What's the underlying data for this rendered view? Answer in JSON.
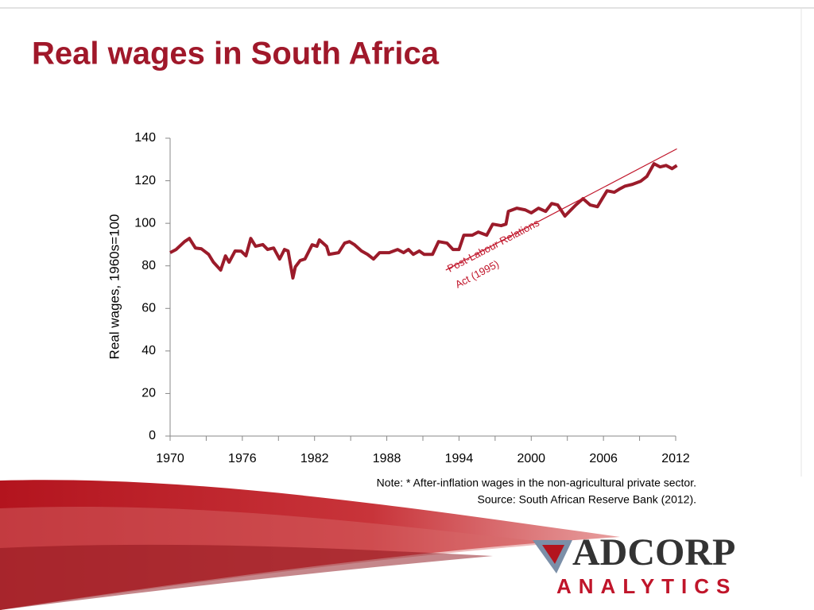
{
  "title": "Real wages in South Africa",
  "chart_data": {
    "type": "line",
    "ylabel": "Real wages, 1960s=100",
    "x": [
      1970,
      1970.5,
      1971.2,
      1971.6,
      1972.1,
      1972.6,
      1973.2,
      1973.6,
      1974.2,
      1974.6,
      1974.9,
      1975.4,
      1975.9,
      1976.3,
      1976.7,
      1977.1,
      1977.7,
      1978.1,
      1978.6,
      1979.1,
      1979.5,
      1979.8,
      1980.2,
      1980.4,
      1980.8,
      1981.2,
      1981.8,
      1982.2,
      1982.4,
      1983,
      1983.2,
      1984,
      1984.5,
      1984.9,
      1985.3,
      1985.9,
      1986.4,
      1986.9,
      1987.4,
      1988.2,
      1988.9,
      1989.4,
      1989.8,
      1990.2,
      1990.7,
      1991.1,
      1991.8,
      1992.3,
      1993,
      1993.5,
      1994,
      1994.4,
      1995.1,
      1995.6,
      1996.3,
      1996.8,
      1997.5,
      1997.9,
      1998.1,
      1998.8,
      1999.5,
      2000,
      2000.6,
      2001.2,
      2001.7,
      2002.2,
      2002.8,
      2003.3,
      2003.7,
      2004.3,
      2004.9,
      2005.5,
      2005.9,
      2006.3,
      2006.9,
      2007.3,
      2007.8,
      2008.4,
      2009.1,
      2009.6,
      2010.2,
      2010.7,
      2011.2,
      2011.7,
      2012.1
    ],
    "series": [
      {
        "name": "Real wages",
        "color": "#9b1b2a",
        "values": [
          86.2,
          87.7,
          91.4,
          92.9,
          88.4,
          88,
          85.4,
          81.7,
          78,
          84.7,
          81.7,
          87,
          86.9,
          84.7,
          92.9,
          89.2,
          90,
          87.7,
          88.4,
          83.2,
          87.7,
          87,
          74.3,
          79.5,
          82.5,
          83.2,
          89.9,
          89.2,
          92.2,
          89.2,
          85.4,
          86.2,
          90.7,
          91.4,
          90,
          87,
          85.4,
          83.2,
          86.2,
          86.2,
          87.7,
          86.2,
          87.7,
          85.4,
          87,
          85.4,
          85.4,
          91.4,
          90.7,
          87.7,
          87.7,
          94.4,
          94.4,
          95.9,
          94.4,
          99.6,
          98.9,
          99.6,
          105.6,
          107.1,
          106.3,
          104.9,
          107.1,
          105.6,
          109.3,
          108.6,
          103.4,
          106.3,
          108.6,
          111.6,
          108.6,
          107.8,
          111.6,
          115.3,
          114.6,
          116,
          117.5,
          118.3,
          119.8,
          122,
          128,
          126.5,
          127.2,
          125.7,
          127.2
        ]
      }
    ],
    "trend": {
      "color": "#c0152a",
      "x": [
        1992.9,
        2012.1
      ],
      "values": [
        78,
        135
      ]
    },
    "annotation": [
      "Post-Labour Relations",
      "Act (1995)"
    ],
    "xlim": [
      1970,
      2012
    ],
    "xticks": [
      1970,
      1976,
      1982,
      1988,
      1994,
      2000,
      2006,
      2012
    ],
    "xminor_ticks": [
      1973,
      1979,
      1985,
      1991,
      1997,
      2003,
      2009
    ],
    "ylim": [
      0,
      140
    ],
    "yticks": [
      0,
      20,
      40,
      60,
      80,
      100,
      120,
      140
    ],
    "grid": false
  },
  "notes": [
    "Note: * After-inflation wages in the non-agricultural private sector.",
    "Source: South African Reserve Bank (2012)."
  ],
  "logo": {
    "name": "ADCORP",
    "tagline": "ANALYTICS"
  }
}
